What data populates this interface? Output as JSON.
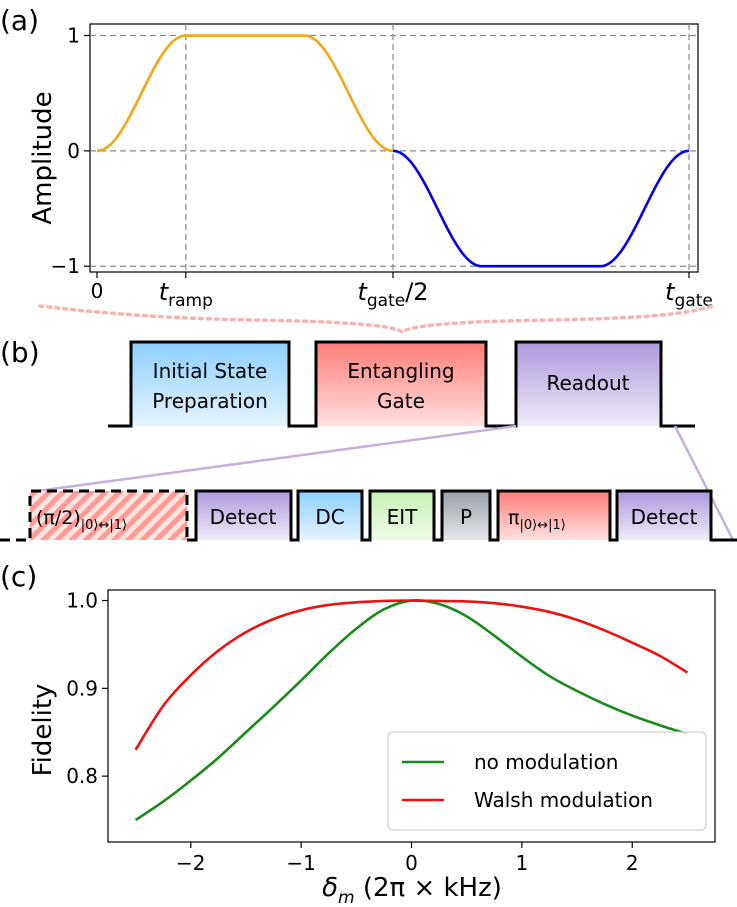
{
  "colors": {
    "ramp_curve": "#f5a614",
    "gate_curve": "#0000ee",
    "fidelity_no_mod": "#1a8a1a",
    "fidelity_walsh": "#ee1111",
    "box_blue": "#bfe3ff",
    "box_red": "#ff8a84",
    "box_purple": "#bfaee2",
    "box_green": "#d6f5c8",
    "box_gray": "#b3b7be",
    "dotted_link": "#f6b5b5",
    "zoom_line": "#c4b0dc"
  },
  "panel_labels": {
    "a": "(a)",
    "b": "(b)",
    "c": "(c)"
  },
  "chart_data": [
    {
      "type": "line",
      "title": "",
      "ylabel": "Amplitude",
      "xlabel": "",
      "t_ramp": 0.15,
      "t_gate": 1.0,
      "x_ticks": [
        "0",
        "t_ramp",
        "t_gate/2",
        "t_gate"
      ],
      "x_tick_labels": {
        "zero": "0",
        "ramp_main": "t",
        "ramp_sub": "ramp",
        "half_main": "t",
        "half_sub": "gate",
        "half_suffix": "/2",
        "gate_main": "t",
        "gate_sub": "gate"
      },
      "y_ticks": [
        1,
        0,
        -1
      ],
      "y_tick_labels": [
        "1",
        "0",
        "−1"
      ],
      "ylim": [
        -1.05,
        1.1
      ],
      "series": [
        {
          "name": "first half pulse",
          "color": "#f5a614",
          "shape": "ramp up to 1, hold, ramp down to 0"
        },
        {
          "name": "second half pulse",
          "color": "#0000ee",
          "shape": "ramp down to -1, hold, ramp up to 0"
        }
      ]
    },
    {
      "type": "line",
      "title": "",
      "xlabel": "δm (2π × kHz)",
      "xlabel_parts": {
        "delta": "δ",
        "sub": "m",
        "rest": " (2π × kHz)"
      },
      "ylabel": "Fidelity",
      "xlim": [
        -2.75,
        2.75
      ],
      "ylim": [
        0.725,
        1.012
      ],
      "x_ticks": [
        -2,
        -1,
        0,
        1,
        2
      ],
      "x_tick_labels": [
        "−2",
        "−1",
        "0",
        "1",
        "2"
      ],
      "y_ticks": [
        0.8,
        0.9,
        1.0
      ],
      "y_tick_labels": [
        "0.8",
        "0.9",
        "1.0"
      ],
      "legend_position": "bottom-right",
      "series": [
        {
          "name": "no modulation",
          "color": "#1a8a1a",
          "x": [
            -2.5,
            -2.25,
            -2.0,
            -1.75,
            -1.5,
            -1.25,
            -1.0,
            -0.75,
            -0.5,
            -0.25,
            0.0,
            0.25,
            0.5,
            0.75,
            1.0,
            1.25,
            1.5,
            1.75,
            2.0,
            2.25,
            2.5
          ],
          "y": [
            0.75,
            0.771,
            0.795,
            0.821,
            0.85,
            0.879,
            0.909,
            0.94,
            0.968,
            0.99,
            1.0,
            0.996,
            0.982,
            0.96,
            0.936,
            0.914,
            0.897,
            0.882,
            0.869,
            0.858,
            0.848
          ]
        },
        {
          "name": "Walsh modulation",
          "color": "#ee1111",
          "x": [
            -2.5,
            -2.25,
            -2.0,
            -1.75,
            -1.5,
            -1.25,
            -1.0,
            -0.75,
            -0.5,
            -0.25,
            0.0,
            0.25,
            0.5,
            0.75,
            1.0,
            1.25,
            1.5,
            1.75,
            2.0,
            2.25,
            2.5
          ],
          "y": [
            0.83,
            0.88,
            0.915,
            0.943,
            0.964,
            0.979,
            0.989,
            0.995,
            0.998,
            0.9995,
            1.0,
            0.9995,
            0.999,
            0.997,
            0.993,
            0.987,
            0.978,
            0.966,
            0.952,
            0.937,
            0.918
          ]
        }
      ]
    }
  ],
  "sequence": {
    "top_boxes": [
      {
        "line1": "Initial State",
        "line2": "Preparation"
      },
      {
        "line1": "Entangling",
        "line2": "Gate"
      },
      {
        "line1": "Readout",
        "line2": ""
      }
    ],
    "readout_steps": {
      "first_main": "(π/2)",
      "first_sub": "|0⟩↔|1⟩",
      "detect1": "Detect",
      "dc": "DC",
      "eit": "EIT",
      "p": "P",
      "pi_main": "π",
      "pi_sub": "|0⟩↔|1⟩",
      "detect2": "Detect"
    }
  }
}
